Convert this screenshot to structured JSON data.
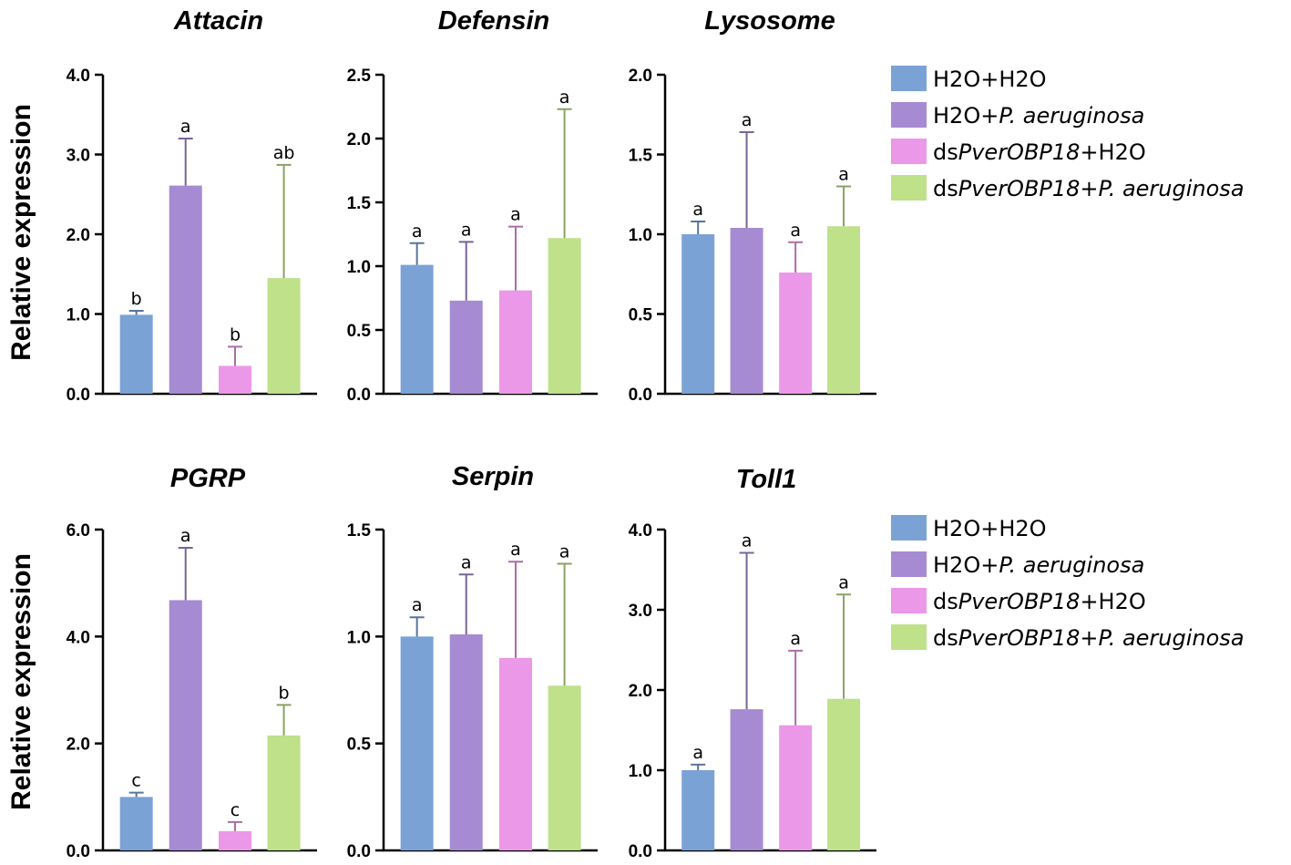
{
  "figure": {
    "y_axis_label": "Relative expression"
  },
  "legend": {
    "items": [
      {
        "prefix": "H2O+H2O",
        "italic": "",
        "suffix": "",
        "color": "#7ba2d5"
      },
      {
        "prefix": "H2O+",
        "italic": "P. aeruginosa",
        "suffix": "",
        "color": "#a68bd2"
      },
      {
        "prefix": "ds",
        "italic": "PverOBP18",
        "suffix": "+H2O",
        "color": "#ec98e8"
      },
      {
        "prefix": "ds",
        "italic": "PverOBP18+P. aeruginosa",
        "suffix": "",
        "color": "#bee18a"
      }
    ]
  },
  "chart_data": [
    {
      "type": "bar",
      "title": "Attacin",
      "ylabel": "Relative expression",
      "categories": [
        "H2O+H2O",
        "H2O+P. aeruginosa",
        "dsPverOBP18+H2O",
        "dsPverOBP18+P. aeruginosa"
      ],
      "values": [
        0.99,
        2.61,
        0.35,
        1.45
      ],
      "errors": [
        0.05,
        0.59,
        0.24,
        1.42
      ],
      "letters": [
        "b",
        "a",
        "b",
        "ab"
      ],
      "ylim": [
        0,
        4.0
      ],
      "yticks": [
        0,
        1,
        2,
        3,
        4
      ],
      "ytick_labels": [
        "0.0",
        "1.0",
        "2.0",
        "3.0",
        "4.0"
      ]
    },
    {
      "type": "bar",
      "title": "Defensin",
      "ylabel": "",
      "categories": [
        "H2O+H2O",
        "H2O+P. aeruginosa",
        "dsPverOBP18+H2O",
        "dsPverOBP18+P. aeruginosa"
      ],
      "values": [
        1.01,
        0.73,
        0.81,
        1.22
      ],
      "errors": [
        0.17,
        0.46,
        0.5,
        1.01
      ],
      "letters": [
        "a",
        "a",
        "a",
        "a"
      ],
      "ylim": [
        0,
        2.5
      ],
      "yticks": [
        0,
        0.5,
        1,
        1.5,
        2,
        2.5
      ],
      "ytick_labels": [
        "0.0",
        "0.5",
        "1.0",
        "1.5",
        "2.0",
        "2.5"
      ]
    },
    {
      "type": "bar",
      "title": "Lysosome",
      "ylabel": "",
      "categories": [
        "H2O+H2O",
        "H2O+P. aeruginosa",
        "dsPverOBP18+H2O",
        "dsPverOBP18+P. aeruginosa"
      ],
      "values": [
        1.0,
        1.04,
        0.76,
        1.05
      ],
      "errors": [
        0.08,
        0.6,
        0.19,
        0.25
      ],
      "letters": [
        "a",
        "a",
        "a",
        "a"
      ],
      "ylim": [
        0,
        2.0
      ],
      "yticks": [
        0,
        0.5,
        1,
        1.5,
        2
      ],
      "ytick_labels": [
        "0.0",
        "0.5",
        "1.0",
        "1.5",
        "2.0"
      ]
    },
    {
      "type": "bar",
      "title": "PGRP",
      "ylabel": "Relative expression",
      "categories": [
        "H2O+H2O",
        "H2O+P. aeruginosa",
        "dsPverOBP18+H2O",
        "dsPverOBP18+P. aeruginosa"
      ],
      "values": [
        1.0,
        4.68,
        0.36,
        2.15
      ],
      "errors": [
        0.08,
        0.98,
        0.17,
        0.57
      ],
      "letters": [
        "c",
        "a",
        "c",
        "b"
      ],
      "ylim": [
        0,
        6.0
      ],
      "yticks": [
        0,
        2,
        4,
        6
      ],
      "ytick_labels": [
        "0.0",
        "2.0",
        "4.0",
        "6.0"
      ]
    },
    {
      "type": "bar",
      "title": "Serpin",
      "ylabel": "",
      "categories": [
        "H2O+H2O",
        "H2O+P. aeruginosa",
        "dsPverOBP18+H2O",
        "dsPverOBP18+P. aeruginosa"
      ],
      "values": [
        1.0,
        1.01,
        0.9,
        0.77
      ],
      "errors": [
        0.09,
        0.28,
        0.45,
        0.57
      ],
      "letters": [
        "a",
        "a",
        "a",
        "a"
      ],
      "ylim": [
        0,
        1.5
      ],
      "yticks": [
        0,
        0.5,
        1,
        1.5
      ],
      "ytick_labels": [
        "0.0",
        "0.5",
        "1.0",
        "1.5"
      ]
    },
    {
      "type": "bar",
      "title": "Toll1",
      "ylabel": "",
      "categories": [
        "H2O+H2O",
        "H2O+P. aeruginosa",
        "dsPverOBP18+H2O",
        "dsPverOBP18+P. aeruginosa"
      ],
      "values": [
        1.0,
        1.76,
        1.56,
        1.89
      ],
      "errors": [
        0.07,
        1.95,
        0.93,
        1.3
      ],
      "letters": [
        "a",
        "a",
        "a",
        "a"
      ],
      "ylim": [
        0,
        4.0
      ],
      "yticks": [
        0,
        1,
        2,
        3,
        4
      ],
      "ytick_labels": [
        "0.0",
        "1.0",
        "2.0",
        "3.0",
        "4.0"
      ]
    }
  ]
}
